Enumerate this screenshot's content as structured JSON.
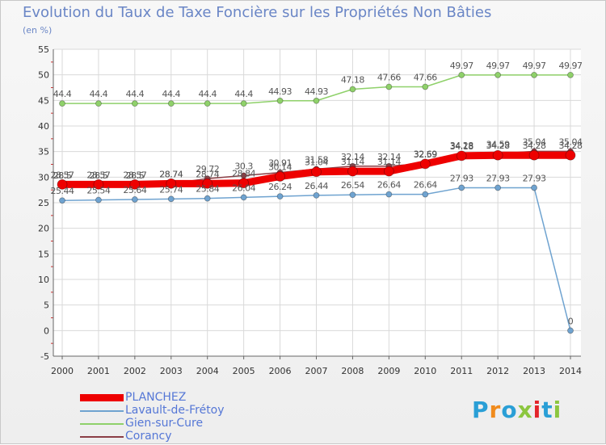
{
  "page": {
    "title": "Evolution du Taux de Taxe Foncière sur les Propriétés Non Bâties",
    "unit": "(en %)"
  },
  "logo": {
    "text": "Proxiti",
    "letter_colors": [
      "#2a9fd6",
      "#f08b1d",
      "#2a9fd6",
      "#8cc63f",
      "#e3262b",
      "#2a9fd6",
      "#8cc63f"
    ]
  },
  "chart_data": {
    "type": "line",
    "title": "Evolution du Taux de Taxe Foncière sur les Propriétés Non Bâties",
    "ylabel": "(en %)",
    "xlabel": "",
    "ylim": [
      -5,
      55
    ],
    "yticks": [
      -5,
      0,
      5,
      10,
      15,
      20,
      25,
      30,
      35,
      40,
      45,
      50,
      55
    ],
    "grid": true,
    "legend_position": "bottom-left",
    "x": [
      "2000",
      "2001",
      "2002",
      "2003",
      "2004",
      "2005",
      "2006",
      "2007",
      "2008",
      "2009",
      "2010",
      "2011",
      "2012",
      "2013",
      "2014"
    ],
    "series": [
      {
        "name": "Gien-sur-Cure",
        "color": "#8fd16a",
        "values": [
          44.4,
          44.4,
          44.4,
          44.4,
          44.4,
          44.4,
          44.93,
          44.93,
          47.18,
          47.66,
          47.66,
          49.97,
          49.97,
          49.97,
          49.97
        ],
        "labels": [
          "44.4",
          "44.4",
          "44.4",
          "44.4",
          "44.4",
          "44.4",
          "44.93",
          "44.93",
          "47.18",
          "47.66",
          "47.66",
          "49.97",
          "49.97",
          "49.97",
          "49.97"
        ]
      },
      {
        "name": "Corancy",
        "color": "#8b3e45",
        "values": [
          28.5,
          28.5,
          28.5,
          28.74,
          29.72,
          30.3,
          30.91,
          31.58,
          32.14,
          32.14,
          32.69,
          34.28,
          34.59,
          35.04,
          35.04
        ],
        "labels": [
          "28.5",
          "28.5",
          "28.5",
          "28.74",
          "29.72",
          "30.3",
          "30.91",
          "31.58",
          "32.14",
          "32.14",
          "32.69",
          "34.28",
          "34.59",
          "35.04",
          "35.04"
        ]
      },
      {
        "name": "PLANCHEZ",
        "color": "#ee0000",
        "values": [
          28.57,
          28.57,
          28.57,
          28.74,
          28.74,
          28.84,
          30.14,
          31.04,
          31.14,
          31.14,
          32.59,
          34.18,
          34.28,
          34.28,
          34.28
        ],
        "labels": [
          "28.57",
          "28.57",
          "28.57",
          "28.74",
          "28.74",
          "28.84",
          "30.14",
          "31.04",
          "31.14",
          "31.14",
          "32.59",
          "34.18",
          "34.28",
          "34.28",
          "34.28"
        ]
      },
      {
        "name": "Lavault-de-Frétoy",
        "color": "#6fa3d0",
        "values": [
          25.44,
          25.54,
          25.64,
          25.74,
          25.84,
          26.04,
          26.24,
          26.44,
          26.54,
          26.64,
          26.64,
          27.93,
          27.93,
          27.93,
          0
        ],
        "labels": [
          "25.44",
          "25.54",
          "25.64",
          "25.74",
          "25.84",
          "26.04",
          "26.24",
          "26.44",
          "26.54",
          "26.64",
          "26.64",
          "27.93",
          "27.93",
          "27.93",
          "0"
        ]
      }
    ]
  },
  "legend": [
    {
      "label": "PLANCHEZ",
      "color": "#ee0000",
      "thick": true
    },
    {
      "label": "Lavault-de-Frétoy",
      "color": "#6fa3d0",
      "thick": false
    },
    {
      "label": "Gien-sur-Cure",
      "color": "#8fd16a",
      "thick": false
    },
    {
      "label": "Corancy",
      "color": "#8b3e45",
      "thick": false
    }
  ]
}
